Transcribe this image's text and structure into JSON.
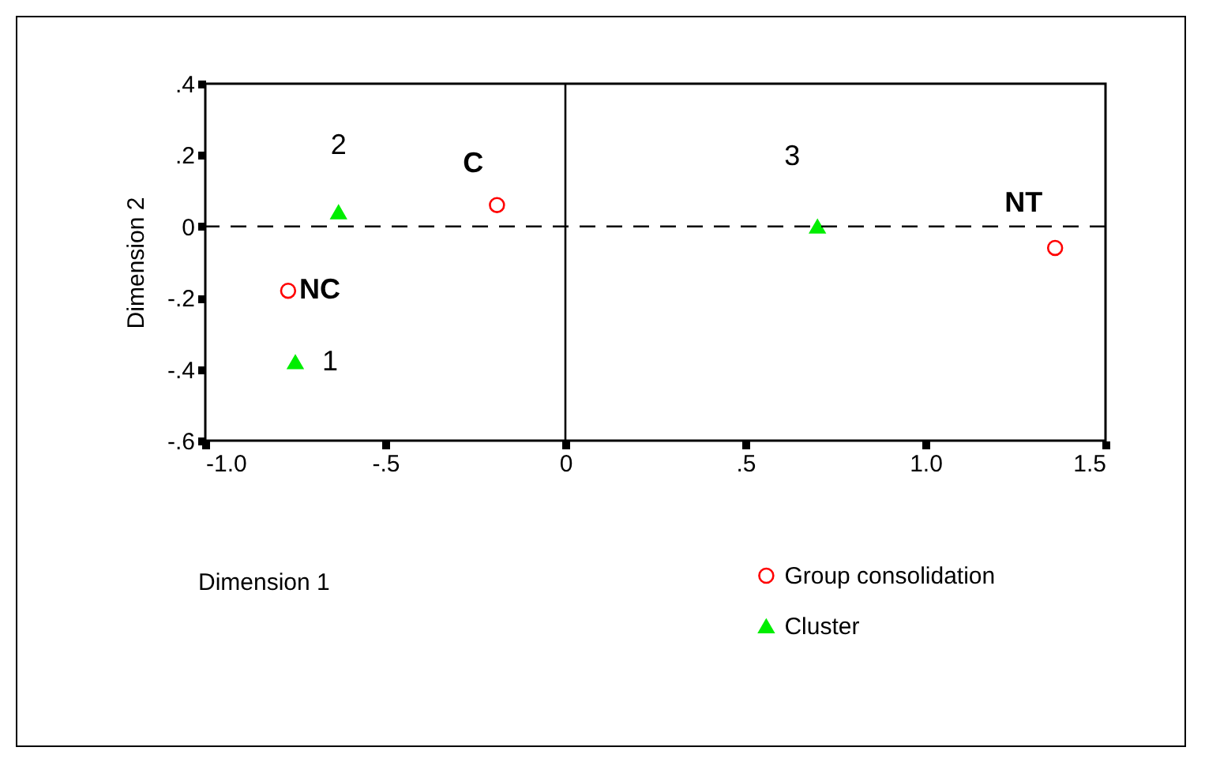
{
  "chart_data": {
    "type": "scatter",
    "xlabel": "Dimension 1",
    "ylabel": "Dimension 2",
    "xlim": [
      -1.0,
      1.5
    ],
    "xticks": [
      {
        "value": -1.0,
        "label": "-1.0"
      },
      {
        "value": -0.5,
        "label": "-.5"
      },
      0,
      {
        "value": 0.5,
        "label": ".5"
      },
      {
        "value": 1.0,
        "label": "1.0"
      },
      {
        "value": 1.5,
        "label": "1.5"
      }
    ],
    "ylim": [
      -0.6,
      0.4
    ],
    "yticks": [
      {
        "value": -0.6,
        "label": "-.6"
      },
      {
        "value": -0.4,
        "label": "-.4"
      },
      {
        "value": -0.2,
        "label": "-.2"
      },
      0,
      {
        "value": 0.2,
        "label": ".2"
      },
      {
        "value": 0.4,
        "label": ".4"
      }
    ],
    "series": [
      {
        "name": "Group consolidation",
        "color": "#ff0000",
        "marker": "circle",
        "x": [
          -0.77,
          -0.19,
          1.36
        ],
        "values": [
          -0.18,
          0.06,
          -0.06
        ]
      },
      {
        "name": "Cluster",
        "color": "#00ee00",
        "marker": "triangle",
        "x": [
          -0.75,
          -0.63,
          0.7
        ],
        "values": [
          -0.38,
          0.04,
          0.0
        ]
      }
    ],
    "annotations": [
      {
        "text": "NC",
        "x": -0.77,
        "y": -0.18
      },
      {
        "text": "C",
        "x": -0.19,
        "y": 0.06
      },
      {
        "text": "NT",
        "x": 1.36,
        "y": -0.06
      },
      {
        "text": "1",
        "x": -0.75,
        "y": -0.38
      },
      {
        "text": "2",
        "x": -0.63,
        "y": 0.04
      },
      {
        "text": "3",
        "x": 0.7,
        "y": 0.0
      }
    ],
    "ref_lines": [
      {
        "axis": "y",
        "value": 0,
        "line_style": "dashed"
      },
      {
        "axis": "x",
        "value": 0,
        "line_style": "solid"
      }
    ],
    "grid": false,
    "legend": "bottom right"
  }
}
